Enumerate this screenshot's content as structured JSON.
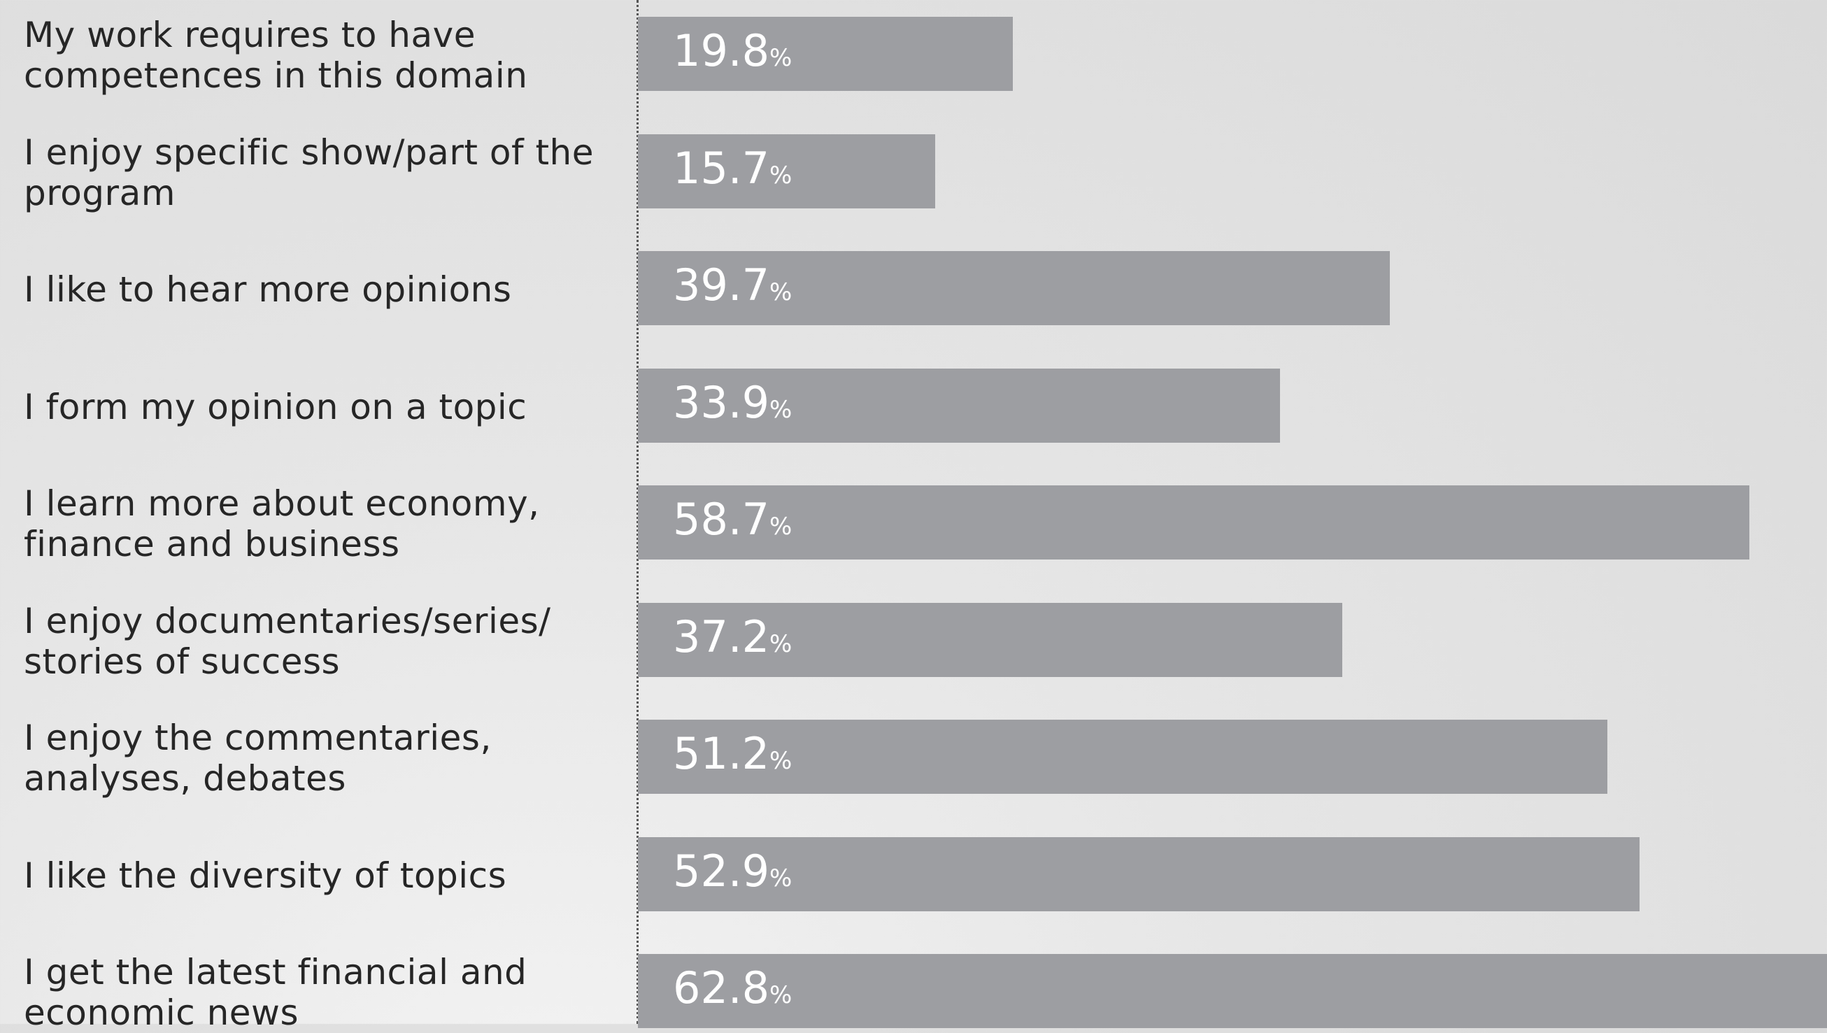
{
  "chart_data": {
    "type": "bar",
    "orientation": "horizontal",
    "unit": "%",
    "xlim": [
      0,
      62.8
    ],
    "grid": false,
    "categories": [
      "My work requires to have\ncompetences in this domain",
      "I enjoy specific show/part of the\nprogram",
      "I like to hear more opinions",
      "I form my opinion on a topic",
      "I learn more about economy,\nfinance and business",
      "I enjoy documentaries/series/\nstories of success",
      "I enjoy the commentaries,\nanalyses, debates",
      "I like the diversity of topics",
      "I get the latest financial and\neconomic news"
    ],
    "values": [
      19.8,
      15.7,
      39.7,
      33.9,
      58.7,
      37.2,
      51.2,
      52.9,
      62.8
    ],
    "value_labels": [
      "19.8",
      "15.7",
      "39.7",
      "33.9",
      "58.7",
      "37.2",
      "51.2",
      "52.9",
      "62.8"
    ],
    "bar_color": "#9d9ea2",
    "label_color": "#262626",
    "value_text_color": "#ffffff"
  }
}
